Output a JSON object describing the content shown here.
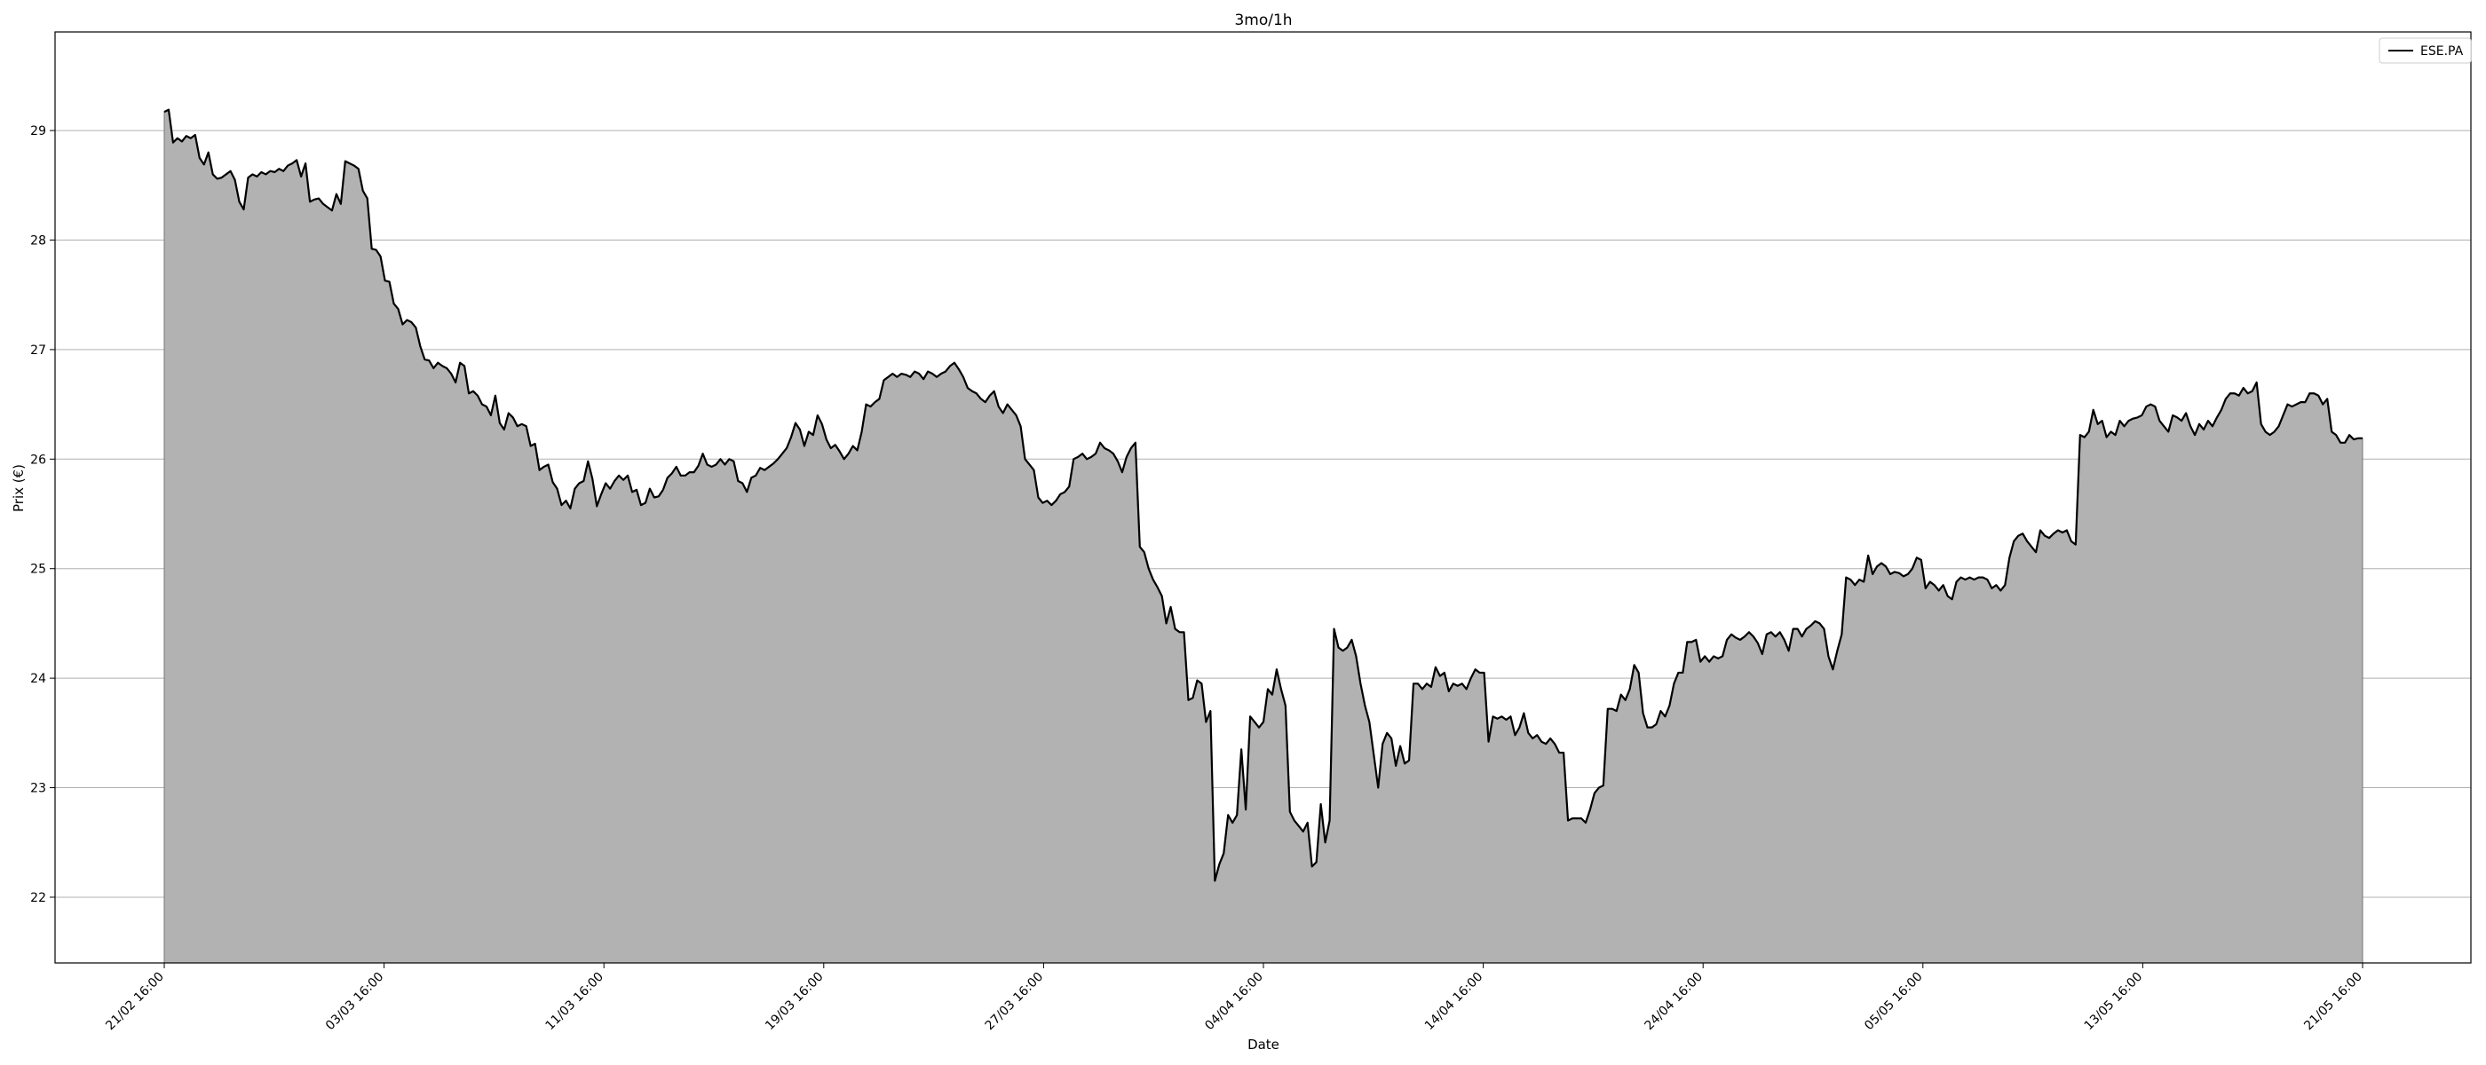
{
  "chart_data": {
    "type": "area",
    "title": "3mo/1h",
    "xlabel": "Date",
    "ylabel": "Prix (€)",
    "ylim": [
      21.4,
      29.9
    ],
    "yticks": [
      22,
      23,
      24,
      25,
      26,
      27,
      28,
      29
    ],
    "x_ticks": [
      "21/02 16:00",
      "03/03 16:00",
      "11/03 16:00",
      "19/03 16:00",
      "27/03 16:00",
      "04/04 16:00",
      "14/04 16:00",
      "24/04 16:00",
      "05/05 16:00",
      "13/05 16:00",
      "21/05 16:00"
    ],
    "grid": "horizontal",
    "legend_position": "top-right",
    "line_color": "#000000",
    "fill_color": "#b2b2b2",
    "series": [
      {
        "name": "ESE.PA",
        "values": [
          29.17,
          29.19,
          28.89,
          28.93,
          28.9,
          28.95,
          28.93,
          28.96,
          28.75,
          28.69,
          28.8,
          28.6,
          28.56,
          28.57,
          28.6,
          28.63,
          28.55,
          28.35,
          28.28,
          28.57,
          28.6,
          28.58,
          28.62,
          28.6,
          28.63,
          28.62,
          28.65,
          28.63,
          28.68,
          28.7,
          28.73,
          28.58,
          28.7,
          28.35,
          28.37,
          28.38,
          28.33,
          28.3,
          28.27,
          28.42,
          28.33,
          28.72,
          28.7,
          28.68,
          28.65,
          28.45,
          28.38,
          27.92,
          27.91,
          27.85,
          27.63,
          27.62,
          27.42,
          27.37,
          27.23,
          27.27,
          27.25,
          27.2,
          27.03,
          26.91,
          26.9,
          26.83,
          26.88,
          26.85,
          26.83,
          26.78,
          26.7,
          26.88,
          26.85,
          26.6,
          26.62,
          26.58,
          26.5,
          26.48,
          26.4,
          26.58,
          26.33,
          26.27,
          26.42,
          26.38,
          26.3,
          26.32,
          26.3,
          26.12,
          26.14,
          25.9,
          25.93,
          25.95,
          25.79,
          25.73,
          25.58,
          25.62,
          25.55,
          25.73,
          25.78,
          25.8,
          25.98,
          25.82,
          25.57,
          25.68,
          25.78,
          25.73,
          25.8,
          25.85,
          25.81,
          25.85,
          25.7,
          25.72,
          25.58,
          25.6,
          25.73,
          25.65,
          25.66,
          25.72,
          25.83,
          25.87,
          25.93,
          25.85,
          25.85,
          25.88,
          25.88,
          25.94,
          26.05,
          25.95,
          25.93,
          25.95,
          26.0,
          25.95,
          26.0,
          25.98,
          25.8,
          25.78,
          25.7,
          25.83,
          25.85,
          25.92,
          25.9,
          25.93,
          25.96,
          26.0,
          26.05,
          26.1,
          26.2,
          26.33,
          26.27,
          26.12,
          26.25,
          26.22,
          26.4,
          26.32,
          26.18,
          26.1,
          26.13,
          26.07,
          26.0,
          26.05,
          26.12,
          26.08,
          26.25,
          26.5,
          26.48,
          26.52,
          26.55,
          26.72,
          26.75,
          26.78,
          26.75,
          26.78,
          26.77,
          26.75,
          26.8,
          26.78,
          26.73,
          26.8,
          26.78,
          26.75,
          26.78,
          26.8,
          26.85,
          26.88,
          26.82,
          26.75,
          26.65,
          26.62,
          26.6,
          26.55,
          26.52,
          26.58,
          26.62,
          26.48,
          26.42,
          26.5,
          26.45,
          26.4,
          26.3,
          26.0,
          25.95,
          25.9,
          25.65,
          25.6,
          25.62,
          25.58,
          25.62,
          25.68,
          25.7,
          25.75,
          26.0,
          26.02,
          26.05,
          26.0,
          26.02,
          26.05,
          26.15,
          26.1,
          26.08,
          26.05,
          25.98,
          25.88,
          26.02,
          26.1,
          26.15,
          25.2,
          25.15,
          25.0,
          24.9,
          24.83,
          24.75,
          24.5,
          24.65,
          24.45,
          24.42,
          24.42,
          23.8,
          23.82,
          23.98,
          23.95,
          23.6,
          23.7,
          22.15,
          22.3,
          22.4,
          22.75,
          22.68,
          22.75,
          23.35,
          22.8,
          23.65,
          23.6,
          23.55,
          23.6,
          23.9,
          23.85,
          24.08,
          23.9,
          23.75,
          22.78,
          22.7,
          22.65,
          22.6,
          22.68,
          22.28,
          22.32,
          22.85,
          22.5,
          22.7,
          24.45,
          24.28,
          24.25,
          24.28,
          24.35,
          24.2,
          23.95,
          23.75,
          23.6,
          23.3,
          23.0,
          23.4,
          23.5,
          23.45,
          23.2,
          23.38,
          23.22,
          23.25,
          23.95,
          23.95,
          23.9,
          23.95,
          23.92,
          24.1,
          24.02,
          24.05,
          23.88,
          23.95,
          23.93,
          23.95,
          23.9,
          24.0,
          24.08,
          24.05,
          24.05,
          23.42,
          23.65,
          23.63,
          23.65,
          23.62,
          23.65,
          23.48,
          23.55,
          23.68,
          23.5,
          23.45,
          23.48,
          23.42,
          23.4,
          23.45,
          23.4,
          23.32,
          23.32,
          22.7,
          22.72,
          22.72,
          22.72,
          22.68,
          22.8,
          22.95,
          23.0,
          23.02,
          23.72,
          23.72,
          23.7,
          23.85,
          23.8,
          23.9,
          24.12,
          24.05,
          23.68,
          23.55,
          23.55,
          23.58,
          23.7,
          23.65,
          23.75,
          23.95,
          24.05,
          24.05,
          24.33,
          24.33,
          24.35,
          24.15,
          24.2,
          24.15,
          24.2,
          24.18,
          24.2,
          24.35,
          24.4,
          24.37,
          24.35,
          24.38,
          24.42,
          24.38,
          24.32,
          24.22,
          24.4,
          24.42,
          24.38,
          24.42,
          24.35,
          24.25,
          24.45,
          24.45,
          24.38,
          24.45,
          24.48,
          24.52,
          24.5,
          24.45,
          24.2,
          24.08,
          24.25,
          24.4,
          24.92,
          24.9,
          24.85,
          24.9,
          24.88,
          25.12,
          24.95,
          25.02,
          25.05,
          25.02,
          24.95,
          24.97,
          24.96,
          24.93,
          24.95,
          25.0,
          25.1,
          25.08,
          24.82,
          24.88,
          24.85,
          24.8,
          24.85,
          24.75,
          24.72,
          24.88,
          24.92,
          24.9,
          24.92,
          24.9,
          24.92,
          24.92,
          24.9,
          24.82,
          24.85,
          24.8,
          24.85,
          25.1,
          25.25,
          25.3,
          25.32,
          25.25,
          25.2,
          25.15,
          25.35,
          25.3,
          25.28,
          25.32,
          25.35,
          25.33,
          25.35,
          25.25,
          25.22,
          26.22,
          26.2,
          26.25,
          26.45,
          26.32,
          26.35,
          26.2,
          26.25,
          26.22,
          26.35,
          26.3,
          26.35,
          26.37,
          26.38,
          26.4,
          26.48,
          26.5,
          26.48,
          26.35,
          26.3,
          26.25,
          26.4,
          26.38,
          26.35,
          26.42,
          26.3,
          26.22,
          26.32,
          26.27,
          26.35,
          26.3,
          26.38,
          26.45,
          26.55,
          26.6,
          26.6,
          26.58,
          26.65,
          26.6,
          26.62,
          26.7,
          26.32,
          26.25,
          26.22,
          26.25,
          26.3,
          26.4,
          26.5,
          26.48,
          26.5,
          26.52,
          26.52,
          26.6,
          26.6,
          26.58,
          26.5,
          26.55,
          26.25,
          26.22,
          26.15,
          26.15,
          26.22,
          26.18,
          26.19,
          26.19
        ]
      }
    ]
  }
}
